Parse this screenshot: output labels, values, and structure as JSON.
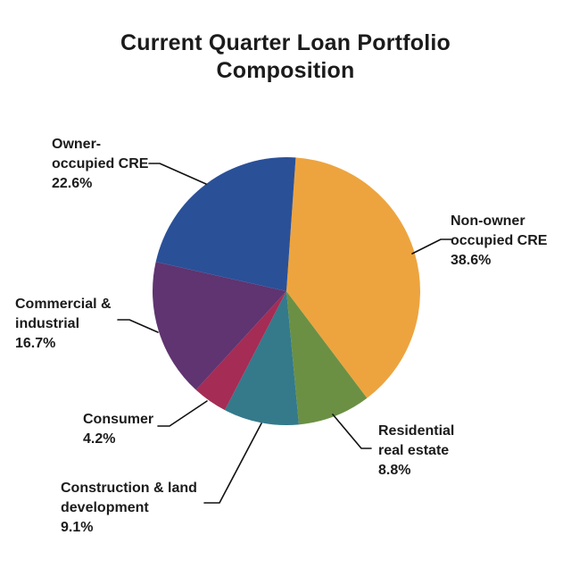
{
  "title": "Current Quarter Loan Portfolio Composition",
  "chart_data": {
    "type": "pie",
    "title": "Current Quarter Loan Portfolio Composition",
    "start_angle_deg": 4,
    "direction": "clockwise",
    "value_unit": "percent",
    "legend_position": "none",
    "labels_style": "outside-with-leader-lines",
    "slices": [
      {
        "label": "Non-owner occupied CRE",
        "value": 38.6,
        "pct_label": "38.6%",
        "color": "#EDA43F"
      },
      {
        "label": "Residential real estate",
        "value": 8.8,
        "pct_label": "8.8%",
        "color": "#6B9044"
      },
      {
        "label": "Construction & land development",
        "value": 9.1,
        "pct_label": "9.1%",
        "color": "#347A8B"
      },
      {
        "label": "Consumer",
        "value": 4.2,
        "pct_label": "4.2%",
        "color": "#A52C55"
      },
      {
        "label": "Commercial & industrial",
        "value": 16.7,
        "pct_label": "16.7%",
        "color": "#5F3470"
      },
      {
        "label": "Owner-occupied CRE",
        "value": 22.6,
        "pct_label": "22.6%",
        "color": "#2A5098"
      }
    ],
    "colors": {
      "background": "#FFFFFF",
      "text": "#1B1B1B",
      "leader_line": "#111111"
    }
  }
}
